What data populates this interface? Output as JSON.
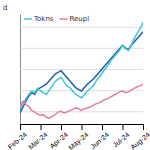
{
  "chart_data": {
    "type": "line",
    "title": "",
    "y_label": "d",
    "categories": [
      "Feb-24",
      null,
      null,
      null,
      null,
      null,
      null,
      "Mar-24",
      null,
      null,
      null,
      null,
      null,
      null,
      "Apr-24",
      null,
      null,
      null,
      null,
      null,
      null,
      "May-24",
      null,
      null,
      null,
      null,
      null,
      null,
      "Jun-24",
      null,
      null,
      null,
      null,
      null,
      null,
      "Jul-24",
      null,
      null,
      null,
      null,
      null,
      null,
      "Aug-24"
    ],
    "series": [
      {
        "color": "#2060a0",
        "values": [
          98,
          105,
          112,
          118,
          122,
          120,
          126,
          128,
          130,
          132,
          136,
          140,
          144,
          146,
          148,
          144,
          140,
          136,
          132,
          128,
          126,
          124,
          128,
          132,
          135,
          138,
          142,
          146,
          150,
          154,
          158,
          162,
          166,
          170,
          174,
          178,
          175,
          173,
          178,
          182,
          186,
          190,
          194
        ]
      },
      {
        "name": "Tokns",
        "color": "#40c4d8",
        "values": [
          102,
          108,
          115,
          120,
          124,
          122,
          127,
          124,
          122,
          120,
          125,
          130,
          135,
          138,
          140,
          135,
          130,
          128,
          124,
          120,
          118,
          116,
          120,
          124,
          127,
          130,
          136,
          140,
          145,
          150,
          154,
          160,
          164,
          168,
          172,
          178,
          174,
          172,
          178,
          186,
          192,
          198,
          205
        ]
      },
      {
        "name": "Reupl",
        "color": "#e87ca0",
        "values": [
          105,
          112,
          108,
          106,
          101,
          99,
          97,
          95,
          96,
          93,
          92,
          94,
          96,
          99,
          100,
          98,
          99,
          101,
          102,
          104,
          103,
          101,
          103,
          104,
          105,
          107,
          109,
          110,
          112,
          114,
          115,
          117,
          119,
          121,
          123,
          124,
          122,
          123,
          125,
          127,
          129,
          130,
          132
        ]
      }
    ],
    "ylim": [
      85,
      215
    ],
    "yticks": [
      100,
      125,
      150,
      175,
      200
    ],
    "grid": true,
    "legend": "upper left",
    "tick_labels": "x"
  }
}
